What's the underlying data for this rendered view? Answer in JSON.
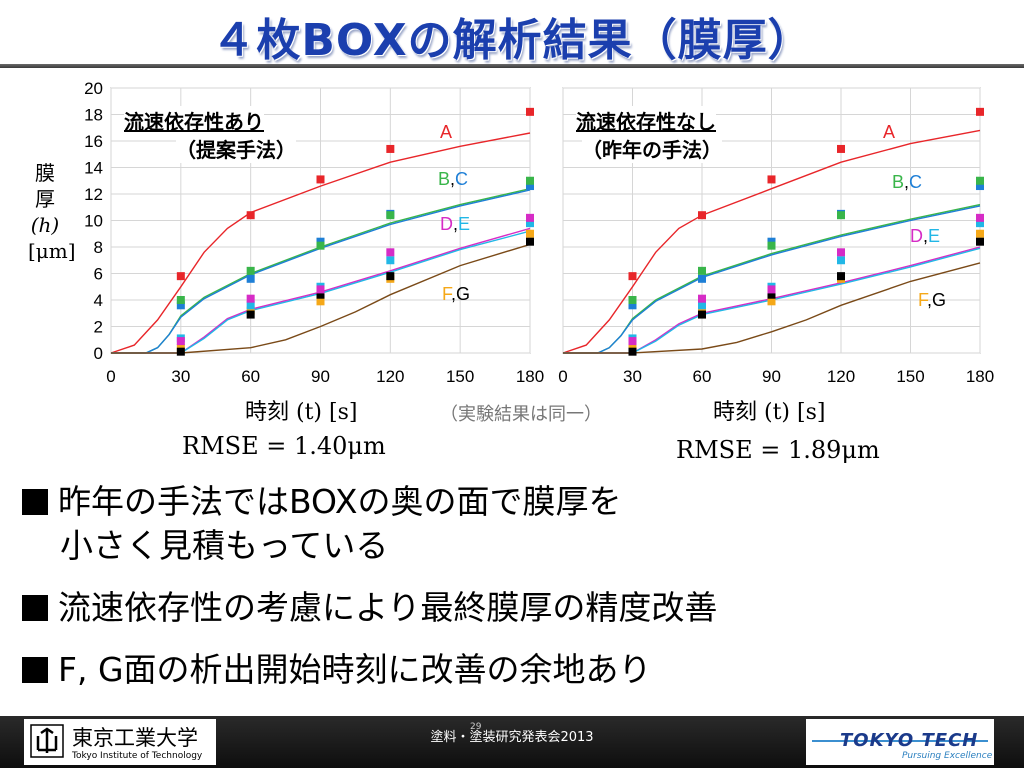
{
  "title": "４枚BOXの解析結果（膜厚）",
  "y_axis_label": {
    "line1": "膜",
    "line2": "厚",
    "line3": "(h)",
    "line4": "[μm]"
  },
  "x_axis_label": "時刻 (t) [s]",
  "center_note": "（実験結果は同一）",
  "colors": {
    "A": "#e8262a",
    "B": "#39b54a",
    "C": "#1e7fd6",
    "D": "#d62cc6",
    "E": "#22b7e6",
    "F": "#f5a818",
    "G": "#000000",
    "title": "#1b3fae"
  },
  "chart_data": [
    {
      "type": "scatter",
      "panel_title": "流速依存性あり",
      "panel_subtitle": "（提案手法）",
      "rmse": "RMSE = 1.40μm",
      "x_ticks": [
        "0",
        "30",
        "60",
        "90",
        "120",
        "150",
        "180"
      ],
      "y_ticks": [
        "0",
        "2",
        "4",
        "6",
        "8",
        "10",
        "12",
        "14",
        "16",
        "18",
        "20"
      ],
      "xlim": [
        0,
        180
      ],
      "ylim": [
        0,
        20
      ],
      "grid": true,
      "group_labels": [
        "A",
        "B,C",
        "D,E",
        "F,G"
      ],
      "points": {
        "A": [
          [
            30,
            5.8
          ],
          [
            60,
            10.4
          ],
          [
            90,
            13.1
          ],
          [
            120,
            15.4
          ],
          [
            180,
            18.2
          ]
        ],
        "B": [
          [
            30,
            4.0
          ],
          [
            60,
            6.2
          ],
          [
            90,
            8.1
          ],
          [
            120,
            10.4
          ],
          [
            180,
            13.0
          ]
        ],
        "C": [
          [
            30,
            3.6
          ],
          [
            60,
            5.6
          ],
          [
            90,
            8.4
          ],
          [
            120,
            10.5
          ],
          [
            180,
            12.6
          ]
        ],
        "D": [
          [
            30,
            0.9
          ],
          [
            60,
            4.1
          ],
          [
            90,
            4.8
          ],
          [
            120,
            7.6
          ],
          [
            180,
            10.2
          ]
        ],
        "E": [
          [
            30,
            1.1
          ],
          [
            60,
            3.6
          ],
          [
            90,
            5.0
          ],
          [
            120,
            7.0
          ],
          [
            180,
            9.8
          ]
        ],
        "F": [
          [
            30,
            0.4
          ],
          [
            60,
            3.2
          ],
          [
            90,
            3.9
          ],
          [
            120,
            5.6
          ],
          [
            180,
            9.0
          ]
        ],
        "G": [
          [
            30,
            0.1
          ],
          [
            60,
            2.9
          ],
          [
            90,
            4.4
          ],
          [
            120,
            5.8
          ],
          [
            180,
            8.4
          ]
        ]
      },
      "curves": {
        "A": [
          [
            0,
            0
          ],
          [
            10,
            0.6
          ],
          [
            20,
            2.5
          ],
          [
            30,
            5.0
          ],
          [
            40,
            7.6
          ],
          [
            50,
            9.4
          ],
          [
            60,
            10.6
          ],
          [
            90,
            12.6
          ],
          [
            120,
            14.4
          ],
          [
            150,
            15.6
          ],
          [
            180,
            16.6
          ]
        ],
        "B": [
          [
            0,
            0
          ],
          [
            15,
            0
          ],
          [
            20,
            0.4
          ],
          [
            25,
            1.4
          ],
          [
            30,
            2.8
          ],
          [
            40,
            4.2
          ],
          [
            60,
            6.0
          ],
          [
            90,
            8.0
          ],
          [
            120,
            9.8
          ],
          [
            150,
            11.2
          ],
          [
            180,
            12.4
          ]
        ],
        "C": [
          [
            0,
            0
          ],
          [
            15,
            0
          ],
          [
            20,
            0.4
          ],
          [
            25,
            1.4
          ],
          [
            30,
            2.7
          ],
          [
            40,
            4.1
          ],
          [
            60,
            5.9
          ],
          [
            90,
            7.9
          ],
          [
            120,
            9.7
          ],
          [
            150,
            11.1
          ],
          [
            180,
            12.3
          ]
        ],
        "D": [
          [
            0,
            0
          ],
          [
            30,
            0
          ],
          [
            40,
            1.2
          ],
          [
            50,
            2.6
          ],
          [
            60,
            3.3
          ],
          [
            90,
            4.6
          ],
          [
            120,
            6.2
          ],
          [
            150,
            7.9
          ],
          [
            180,
            9.4
          ]
        ],
        "E": [
          [
            0,
            0
          ],
          [
            30,
            0
          ],
          [
            40,
            1.1
          ],
          [
            50,
            2.5
          ],
          [
            60,
            3.2
          ],
          [
            90,
            4.5
          ],
          [
            120,
            6.1
          ],
          [
            150,
            7.8
          ],
          [
            180,
            9.2
          ]
        ],
        "F": [
          [
            0,
            0
          ],
          [
            30,
            0
          ],
          [
            60,
            0.4
          ],
          [
            75,
            1.0
          ],
          [
            90,
            2.0
          ],
          [
            105,
            3.1
          ],
          [
            120,
            4.4
          ],
          [
            150,
            6.6
          ],
          [
            180,
            8.2
          ]
        ]
      }
    },
    {
      "type": "scatter",
      "panel_title": "流速依存性なし",
      "panel_subtitle": "（昨年の手法）",
      "rmse": "RMSE = 1.89μm",
      "x_ticks": [
        "0",
        "30",
        "60",
        "90",
        "120",
        "150",
        "180"
      ],
      "y_ticks": [
        "0",
        "2",
        "4",
        "6",
        "8",
        "10",
        "12",
        "14",
        "16",
        "18",
        "20"
      ],
      "xlim": [
        0,
        180
      ],
      "ylim": [
        0,
        20
      ],
      "grid": true,
      "group_labels": [
        "A",
        "B,C",
        "D,E",
        "F,G"
      ],
      "points": {
        "A": [
          [
            30,
            5.8
          ],
          [
            60,
            10.4
          ],
          [
            90,
            13.1
          ],
          [
            120,
            15.4
          ],
          [
            180,
            18.2
          ]
        ],
        "B": [
          [
            30,
            4.0
          ],
          [
            60,
            6.2
          ],
          [
            90,
            8.1
          ],
          [
            120,
            10.4
          ],
          [
            180,
            13.0
          ]
        ],
        "C": [
          [
            30,
            3.6
          ],
          [
            60,
            5.6
          ],
          [
            90,
            8.4
          ],
          [
            120,
            10.5
          ],
          [
            180,
            12.6
          ]
        ],
        "D": [
          [
            30,
            0.9
          ],
          [
            60,
            4.1
          ],
          [
            90,
            4.8
          ],
          [
            120,
            7.6
          ],
          [
            180,
            10.2
          ]
        ],
        "E": [
          [
            30,
            1.1
          ],
          [
            60,
            3.6
          ],
          [
            90,
            5.0
          ],
          [
            120,
            7.0
          ],
          [
            180,
            9.8
          ]
        ],
        "F": [
          [
            30,
            0.4
          ],
          [
            60,
            3.2
          ],
          [
            90,
            3.9
          ],
          [
            120,
            5.6
          ],
          [
            180,
            9.0
          ]
        ],
        "G": [
          [
            30,
            0.1
          ],
          [
            60,
            2.9
          ],
          [
            90,
            4.4
          ],
          [
            120,
            5.8
          ],
          [
            180,
            8.4
          ]
        ]
      },
      "curves": {
        "A": [
          [
            0,
            0
          ],
          [
            10,
            0.6
          ],
          [
            20,
            2.5
          ],
          [
            30,
            5.0
          ],
          [
            40,
            7.6
          ],
          [
            50,
            9.4
          ],
          [
            60,
            10.4
          ],
          [
            90,
            12.4
          ],
          [
            120,
            14.4
          ],
          [
            150,
            15.8
          ],
          [
            180,
            16.8
          ]
        ],
        "B": [
          [
            0,
            0
          ],
          [
            15,
            0
          ],
          [
            20,
            0.4
          ],
          [
            25,
            1.3
          ],
          [
            30,
            2.6
          ],
          [
            40,
            4.0
          ],
          [
            60,
            5.8
          ],
          [
            90,
            7.5
          ],
          [
            120,
            8.9
          ],
          [
            150,
            10.1
          ],
          [
            180,
            11.2
          ]
        ],
        "C": [
          [
            0,
            0
          ],
          [
            15,
            0
          ],
          [
            20,
            0.4
          ],
          [
            25,
            1.3
          ],
          [
            30,
            2.5
          ],
          [
            40,
            3.9
          ],
          [
            60,
            5.7
          ],
          [
            90,
            7.4
          ],
          [
            120,
            8.8
          ],
          [
            150,
            10.0
          ],
          [
            180,
            11.1
          ]
        ],
        "D": [
          [
            0,
            0
          ],
          [
            30,
            0
          ],
          [
            40,
            1.0
          ],
          [
            50,
            2.2
          ],
          [
            60,
            3.0
          ],
          [
            90,
            4.1
          ],
          [
            120,
            5.3
          ],
          [
            150,
            6.6
          ],
          [
            180,
            8.0
          ]
        ],
        "E": [
          [
            0,
            0
          ],
          [
            30,
            0
          ],
          [
            40,
            0.9
          ],
          [
            50,
            2.1
          ],
          [
            60,
            2.9
          ],
          [
            90,
            4.0
          ],
          [
            120,
            5.2
          ],
          [
            150,
            6.5
          ],
          [
            180,
            7.9
          ]
        ],
        "F": [
          [
            0,
            0
          ],
          [
            30,
            0
          ],
          [
            60,
            0.3
          ],
          [
            75,
            0.8
          ],
          [
            90,
            1.6
          ],
          [
            105,
            2.5
          ],
          [
            120,
            3.6
          ],
          [
            150,
            5.4
          ],
          [
            180,
            6.8
          ]
        ]
      }
    }
  ],
  "bullets": [
    {
      "line1": "昨年の手法ではBOXの奥の面で膜厚を",
      "line2": "小さく見積もっている"
    },
    {
      "line1": "流速依存性の考慮により最終膜厚の精度改善"
    },
    {
      "line1": "F, G面の析出開始時刻に改善の余地あり"
    }
  ],
  "footer": {
    "university_name": "東京工業大学",
    "university_en": "Tokyo Institute of Technology",
    "event": "塗料・塗装研究発表会2013",
    "page_number": "29",
    "brand": "TOKYO TECH",
    "tagline": "Pursuing Excellence"
  }
}
